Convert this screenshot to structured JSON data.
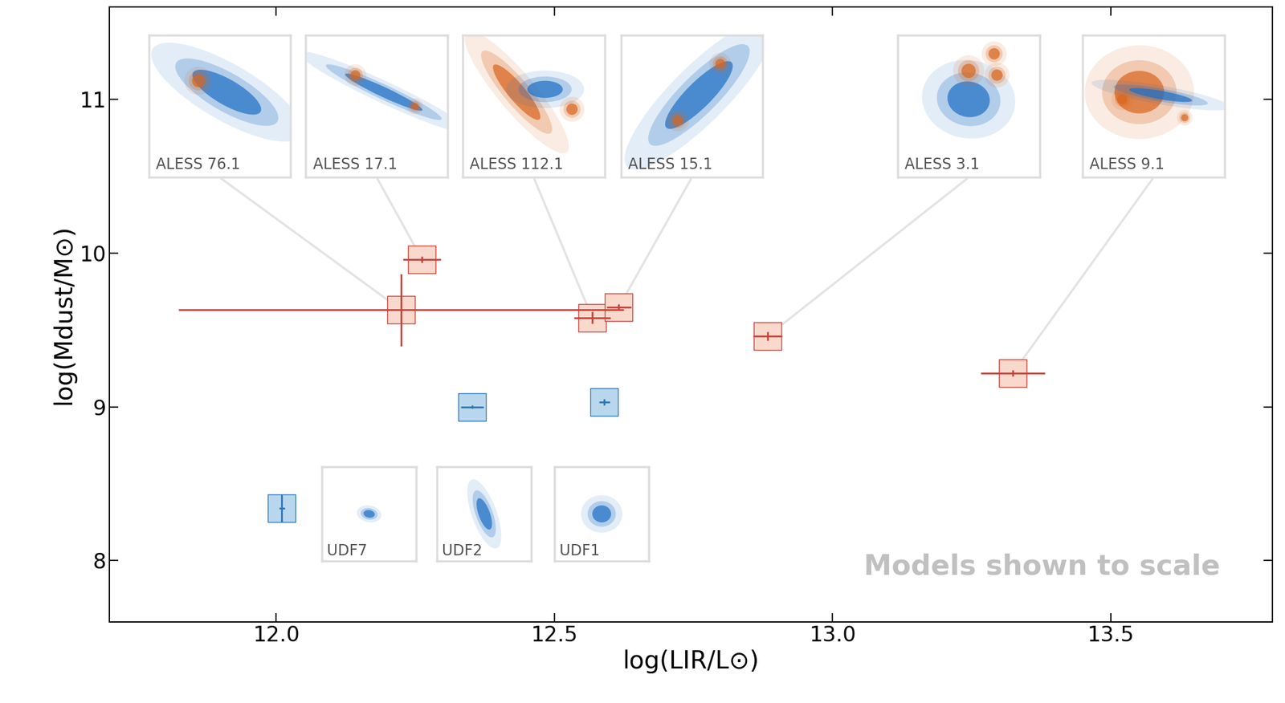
{
  "chart_data": {
    "type": "scatter",
    "xlabel": "log(LIR/L⊙)",
    "ylabel": "log(Mdust/M⊙)",
    "annotation": "Models shown to scale",
    "xlim": [
      11.7,
      13.79
    ],
    "ylim": [
      7.6,
      11.6
    ],
    "xticks": [
      12.0,
      12.5,
      13.0,
      13.5
    ],
    "yticks": [
      8,
      9,
      10,
      11
    ],
    "grid": false,
    "marker": "square",
    "series": [
      {
        "color": "#c8413a",
        "fill": "#f9d9cc",
        "labels": [
          "ALESS 76.1",
          "ALESS 17.1",
          "ALESS 112.1",
          "ALESS 15.1",
          "ALESS 3.1",
          "ALESS 9.1"
        ],
        "x": [
          12.225,
          12.262,
          12.568,
          12.616,
          12.883,
          13.324
        ],
        "values": [
          9.63,
          9.96,
          9.58,
          9.65,
          9.46,
          9.22
        ],
        "xerr": [
          0.4,
          0.034,
          0.033,
          0.022,
          0.026,
          0.058
        ],
        "yerr": [
          0.235,
          0.02,
          0.04,
          0.02,
          0.03,
          0.02
        ]
      },
      {
        "color": "#2e75b6",
        "fill": "#b9d7ec",
        "labels": [
          "UDF7",
          "UDF2",
          "UDF1"
        ],
        "x": [
          12.01,
          12.352,
          12.59
        ],
        "values": [
          8.34,
          9.0,
          9.03
        ],
        "xerr": [
          0.005,
          0.02,
          0.01
        ],
        "yerr": [
          0.09,
          0.01,
          0.02
        ]
      }
    ]
  }
}
